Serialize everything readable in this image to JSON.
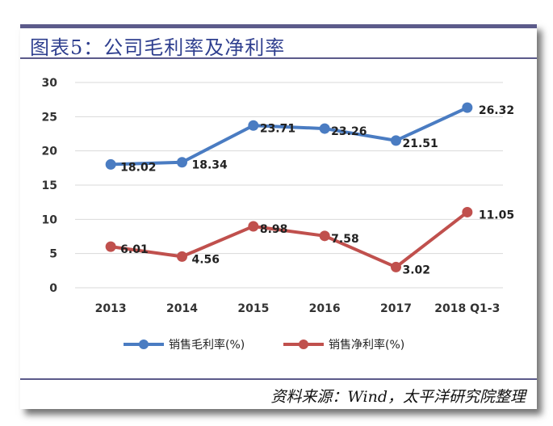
{
  "header": {
    "title": "图表5：公司毛利率及净利率"
  },
  "footer": {
    "source": "资料来源：Wind，太平洋研究院整理"
  },
  "colors": {
    "frame": "#5b5a8a",
    "title": "#2f3f8f",
    "gross": "#4a7cc2",
    "net": "#c0504d",
    "grid": "#d9d9d9"
  },
  "chart_data": {
    "type": "line",
    "title": "公司毛利率及净利率",
    "categories": [
      "2013",
      "2014",
      "2015",
      "2016",
      "2017",
      "2018 Q1-3"
    ],
    "series": [
      {
        "name": "销售毛利率(%)",
        "values": [
          18.02,
          18.34,
          23.71,
          23.26,
          21.51,
          26.32
        ],
        "labels": [
          "18.02",
          "18.34",
          "23.71",
          "23.26",
          "21.51",
          "26.32"
        ]
      },
      {
        "name": "销售净利率(%)",
        "values": [
          6.01,
          4.56,
          8.98,
          7.58,
          3.02,
          11.05
        ],
        "labels": [
          "6.01",
          "4.56",
          "8.98",
          "7.58",
          "3.02",
          "11.05"
        ]
      }
    ],
    "yticks": [
      "0",
      "5",
      "10",
      "15",
      "20",
      "25",
      "30"
    ],
    "ylim": [
      0,
      30
    ],
    "xlabel": "",
    "ylabel": "",
    "grid": true,
    "legend": "bottom"
  }
}
